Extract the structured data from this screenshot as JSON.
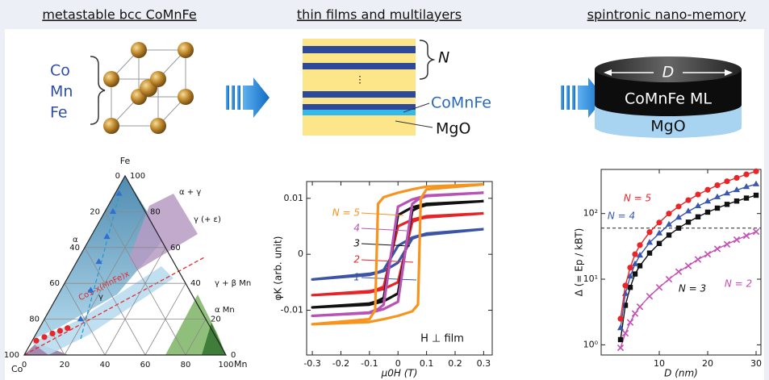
{
  "columns": [
    "metastable bcc CoMnFe",
    "thin films and multilayers",
    "spintronic nano-memory"
  ],
  "elements": [
    "Co",
    "Mn",
    "Fe"
  ],
  "multilayer": {
    "repeat": "N",
    "magnet": "CoMnFe",
    "barrier": "MgO"
  },
  "device": {
    "diameter": "D",
    "magnet": "CoMnFe ML",
    "barrier": "MgO"
  },
  "chart_data": [
    {
      "type": "ternary",
      "vertices": [
        "Co",
        "Mn",
        "Fe"
      ],
      "ticks": [
        0,
        20,
        40,
        60,
        80,
        100
      ],
      "grid": true,
      "regions": [
        "α",
        "α + γ",
        "γ (+ ε)",
        "γ",
        "γ + β Mn",
        "α Mn"
      ],
      "line_label": "Co1-x(MnFe)x",
      "series": [
        {
          "color": "#e8262a",
          "marker": "circle",
          "x": [
            2,
            5,
            8,
            11,
            14
          ],
          "values": [
            8,
            10,
            12,
            13.5,
            15
          ]
        },
        {
          "color": "#2f6fd0",
          "marker": "triangle",
          "x": [
            18,
            15,
            11,
            8,
            4,
            2
          ],
          "values": [
            20,
            36,
            52,
            66,
            80,
            90
          ]
        }
      ]
    },
    {
      "type": "line",
      "xlim": [
        -0.32,
        0.33
      ],
      "ylim": [
        -0.018,
        0.013
      ],
      "xticks": [
        -0.3,
        -0.2,
        -0.1,
        0,
        0.1,
        0.2,
        0.3
      ],
      "yticks": [
        -0.01,
        0,
        0.01
      ],
      "xlabel": "μ0H (T)",
      "ylabel": "φK (arb. unit)",
      "annotation": "H ⊥ film",
      "series": [
        {
          "name": "N = 5",
          "color": "#f7941d",
          "x": [
            0.3,
            0.1,
            0.05,
            0,
            -0.05,
            -0.07,
            -0.08,
            -0.1,
            -0.3,
            -0.3,
            -0.1,
            -0.05,
            0,
            0.05,
            0.07,
            0.08,
            0.1,
            0.3
          ],
          "values": [
            0.0125,
            0.0121,
            0.0116,
            0.011,
            0.0102,
            0.009,
            -0.01,
            -0.0116,
            -0.0125,
            -0.0125,
            -0.0121,
            -0.0116,
            -0.011,
            -0.0102,
            -0.009,
            0.01,
            0.0116,
            0.0125
          ]
        },
        {
          "name": "4",
          "color": "#b653b5",
          "x": [
            0.3,
            0.1,
            0.05,
            0,
            -0.05,
            -0.07,
            -0.08,
            -0.1,
            -0.3,
            -0.3,
            -0.1,
            -0.05,
            0,
            0.05,
            0.07,
            0.08,
            0.1,
            0.3
          ],
          "values": [
            0.011,
            0.0105,
            0.0098,
            0.0085,
            -0.009,
            -0.0098,
            -0.01,
            -0.0104,
            -0.011,
            -0.011,
            -0.0105,
            -0.0098,
            -0.0085,
            0.009,
            0.0098,
            0.01,
            0.0104,
            0.011
          ]
        },
        {
          "name": "3",
          "color": "#111111",
          "x": [
            0.3,
            0.1,
            0.05,
            0,
            -0.05,
            -0.07,
            -0.08,
            -0.1,
            -0.3,
            -0.3,
            -0.1,
            -0.05,
            0,
            0.05,
            0.07,
            0.08,
            0.1,
            0.3
          ],
          "values": [
            0.0095,
            0.009,
            0.0084,
            0.007,
            -0.0078,
            -0.0083,
            -0.0085,
            -0.0088,
            -0.0095,
            -0.0095,
            -0.009,
            -0.0084,
            -0.007,
            0.0078,
            0.0083,
            0.0085,
            0.0088,
            0.0095
          ]
        },
        {
          "name": "2",
          "color": "#e5242a",
          "x": [
            0.3,
            0.1,
            0.05,
            0,
            -0.05,
            -0.07,
            -0.08,
            -0.1,
            -0.3,
            -0.3,
            -0.1,
            -0.05,
            0,
            0.05,
            0.07,
            0.08,
            0.1,
            0.3
          ],
          "values": [
            0.0073,
            0.0068,
            0.0062,
            0.005,
            -0.0058,
            -0.0062,
            -0.0064,
            -0.0066,
            -0.0073,
            -0.0073,
            -0.0068,
            -0.0062,
            -0.005,
            0.0058,
            0.0062,
            0.0064,
            0.0066,
            0.0073
          ]
        },
        {
          "name": "1",
          "color": "#3b54a5",
          "x": [
            0.3,
            0.1,
            0.05,
            0,
            -0.05,
            -0.07,
            -0.08,
            -0.1,
            -0.3,
            -0.3,
            -0.1,
            -0.05,
            0,
            0.05,
            0.07,
            0.08,
            0.1,
            0.3
          ],
          "values": [
            0.0045,
            0.0037,
            0.003,
            0.0015,
            -0.0028,
            -0.0032,
            -0.0033,
            -0.0035,
            -0.0045,
            -0.0045,
            -0.0037,
            -0.003,
            -0.0015,
            0.0028,
            0.0032,
            0.0033,
            0.0035,
            0.0045
          ]
        }
      ]
    },
    {
      "type": "line",
      "ylog": true,
      "xlim": [
        -2,
        31
      ],
      "ylim": [
        0.7,
        470
      ],
      "xticks": [
        10,
        20,
        30
      ],
      "yticks": [
        {
          "value": 1,
          "label": "10⁰"
        },
        {
          "value": 10,
          "label": "10¹"
        },
        {
          "value": 100,
          "label": "10²"
        }
      ],
      "xlabel": "D (nm)",
      "ylabel": "Δ (= Ep / kBT)",
      "reference_line": 60,
      "x": [
        2,
        3,
        4,
        5,
        6,
        8,
        10,
        12,
        14,
        16,
        18,
        20,
        22,
        24,
        26,
        28,
        30
      ],
      "series": [
        {
          "name": "N = 5",
          "color": "#e8262a",
          "marker": "circle",
          "values": [
            2.5,
            8,
            15,
            24,
            33,
            52,
            73,
            100,
            128,
            160,
            195,
            230,
            270,
            310,
            350,
            395,
            440
          ]
        },
        {
          "name": "N = 4",
          "color": "#3a57b0",
          "marker": "triangle",
          "values": [
            1.8,
            6,
            11,
            17,
            23,
            36,
            50,
            68,
            87,
            108,
            130,
            153,
            178,
            203,
            228,
            255,
            280
          ]
        },
        {
          "name": "N = 3",
          "color": "#111111",
          "marker": "square",
          "values": [
            1.2,
            4,
            7.5,
            12,
            16,
            25,
            35,
            47,
            60,
            74,
            89,
            105,
            121,
            138,
            155,
            172,
            190
          ]
        },
        {
          "name": "N = 2",
          "color": "#c64fb6",
          "marker": "cross",
          "values": [
            0.9,
            1.5,
            2.2,
            3,
            3.8,
            5.5,
            7.5,
            10,
            13,
            16,
            20,
            24,
            29,
            34,
            40,
            46,
            53
          ]
        }
      ]
    }
  ]
}
